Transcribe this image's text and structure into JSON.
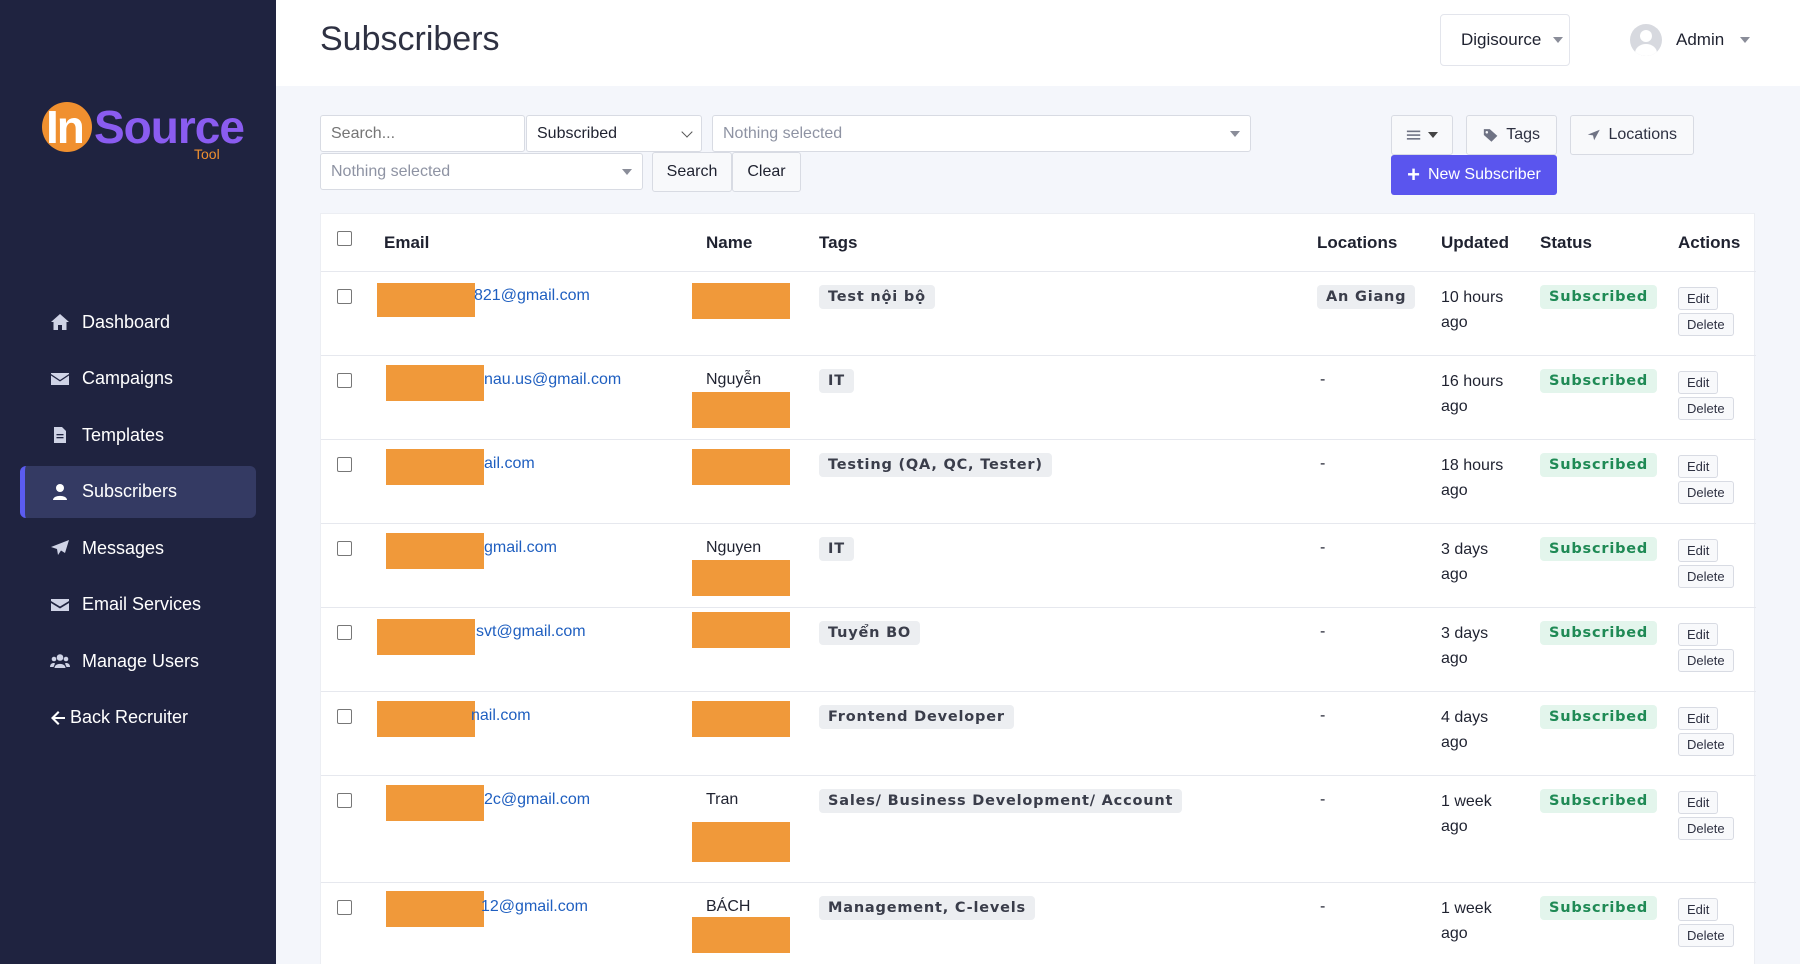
{
  "brand": {
    "part1": "In",
    "part2": "Source",
    "part3": "Tool"
  },
  "sidebar": {
    "items": [
      {
        "label": "Dashboard",
        "icon": "home-icon"
      },
      {
        "label": "Campaigns",
        "icon": "envelope-icon"
      },
      {
        "label": "Templates",
        "icon": "file-icon"
      },
      {
        "label": "Subscribers",
        "icon": "user-icon",
        "active": true
      },
      {
        "label": "Messages",
        "icon": "paper-plane-icon"
      },
      {
        "label": "Email Services",
        "icon": "envelope-icon"
      },
      {
        "label": "Manage Users",
        "icon": "users-icon"
      },
      {
        "label": "Back Recruiter",
        "icon": "arrow-left-icon"
      }
    ]
  },
  "header": {
    "title": "Subscribers",
    "org": "Digisource",
    "user": "Admin"
  },
  "filters": {
    "search_placeholder": "Search...",
    "status_value": "Subscribed",
    "tags_placeholder": "Nothing selected",
    "locations_placeholder": "Nothing selected",
    "search_label": "Search",
    "clear_label": "Clear"
  },
  "toolbar": {
    "tags_label": "Tags",
    "locations_label": "Locations",
    "new_label": "New Subscriber"
  },
  "table": {
    "columns": {
      "email": "Email",
      "name": "Name",
      "tags": "Tags",
      "locations": "Locations",
      "updated": "Updated",
      "status": "Status",
      "actions": "Actions"
    },
    "edit_label": "Edit",
    "delete_label": "Delete",
    "rows": [
      {
        "email": "821@gmail.com",
        "name": "",
        "tag": "Test nội bộ",
        "location": "An Giang",
        "updated_1": "10 hours",
        "updated_2": "ago",
        "status": "Subscribed"
      },
      {
        "email": "nau.us@gmail.com",
        "name": "Nguyễn",
        "tag": "IT",
        "location": "-",
        "updated_1": "16 hours",
        "updated_2": "ago",
        "status": "Subscribed"
      },
      {
        "email": "ail.com",
        "name": "",
        "tag": "Testing (QA, QC, Tester)",
        "location": "-",
        "updated_1": "18 hours",
        "updated_2": "ago",
        "status": "Subscribed"
      },
      {
        "email": "gmail.com",
        "name": "Nguyen",
        "tag": "IT",
        "location": "-",
        "updated_1": "3 days",
        "updated_2": "ago",
        "status": "Subscribed"
      },
      {
        "email": "svt@gmail.com",
        "name": "",
        "tag": "Tuyển BO",
        "location": "-",
        "updated_1": "3 days",
        "updated_2": "ago",
        "status": "Subscribed"
      },
      {
        "email": "nail.com",
        "name": "",
        "tag": "Frontend Developer",
        "location": "-",
        "updated_1": "4 days",
        "updated_2": "ago",
        "status": "Subscribed"
      },
      {
        "email": "2c@gmail.com",
        "name": "Tran",
        "tag": "Sales/ Business Development/ Account",
        "location": "-",
        "updated_1": "1 week",
        "updated_2": "ago",
        "status": "Subscribed"
      },
      {
        "email": "12@gmail.com",
        "name": "BÁCH",
        "tag": "Management, C-levels",
        "location": "-",
        "updated_1": "1 week",
        "updated_2": "ago",
        "status": "Subscribed"
      }
    ]
  },
  "colors": {
    "sidebar_bg": "#1f2340",
    "accent": "#5a55ee",
    "redaction": "#f0993a",
    "status_green": "#1f8a55"
  }
}
